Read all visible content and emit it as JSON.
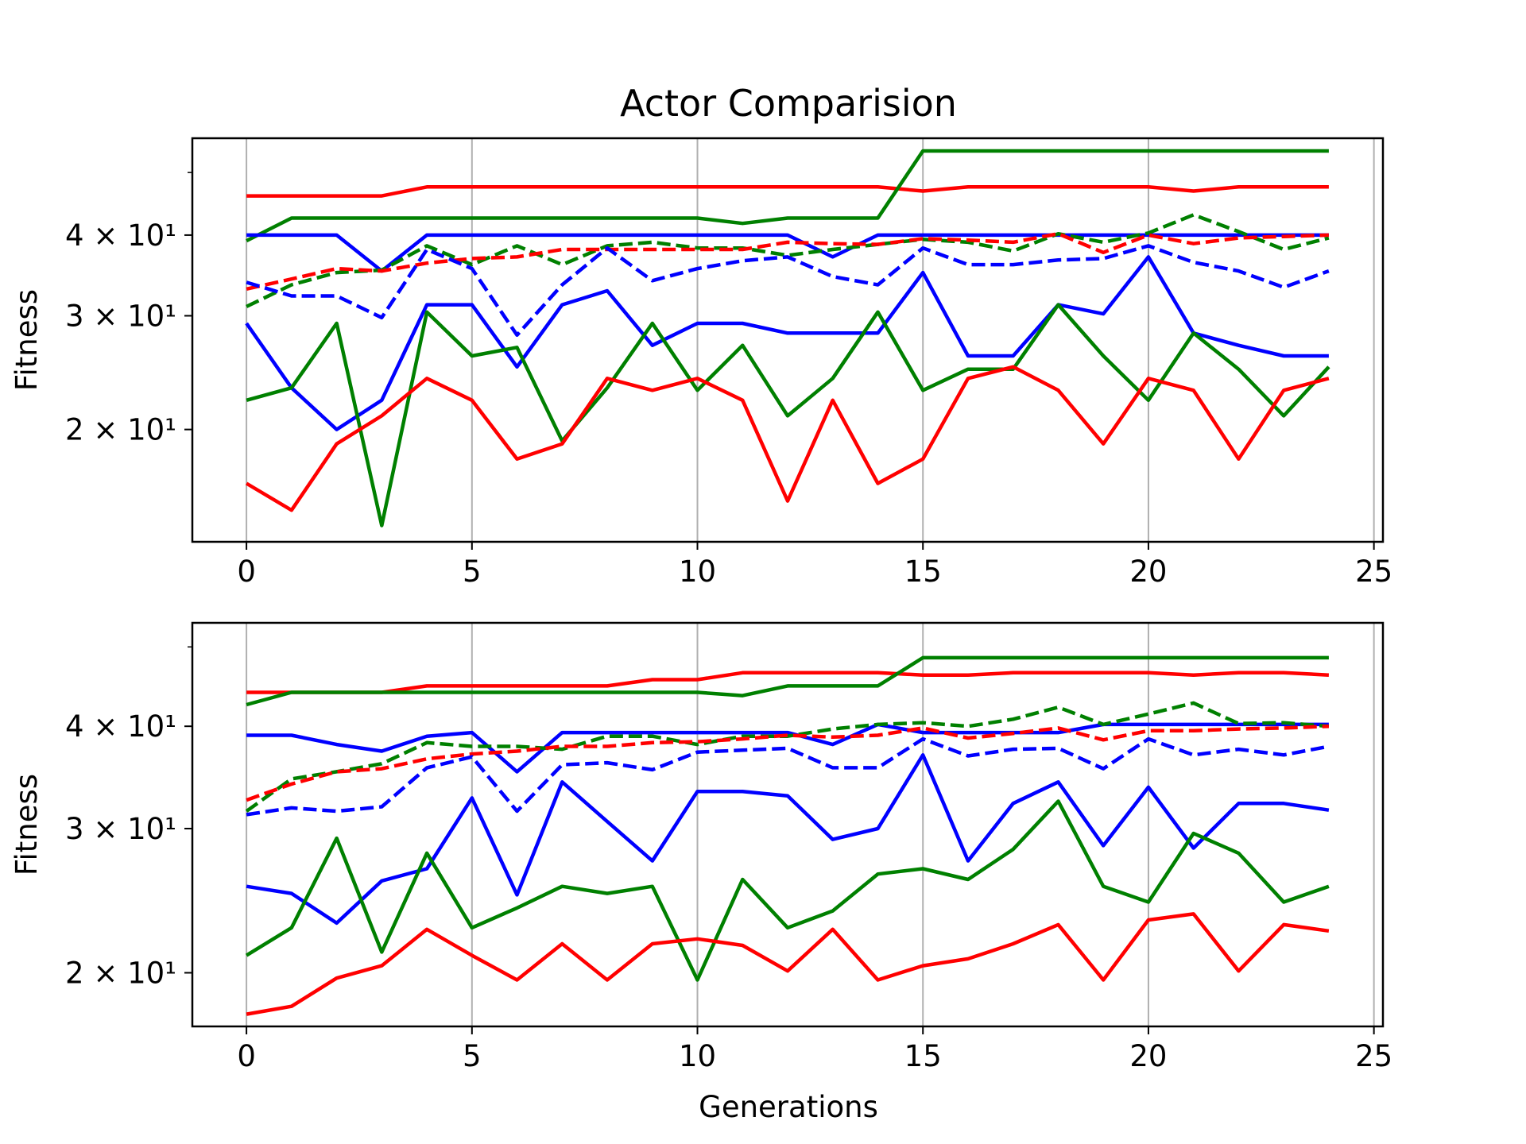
{
  "figure": {
    "title": "Actor Comparision",
    "xlabel": "Generations"
  },
  "chart_data": [
    {
      "type": "line",
      "title": "Actor Comparision",
      "xlabel": "",
      "ylabel": "Fitness",
      "yscale": "log",
      "xlim": [
        -1.2,
        25.2
      ],
      "ylim": [
        13.4,
        56.5
      ],
      "xticks": [
        0,
        5,
        10,
        15,
        20,
        25
      ],
      "yticks": [
        {
          "value": 20,
          "label": "2 × 10¹"
        },
        {
          "value": 30,
          "label": "3 × 10¹"
        },
        {
          "value": 40,
          "label": "4 × 10¹"
        }
      ],
      "grid": "x",
      "x": [
        0,
        1,
        2,
        3,
        4,
        5,
        6,
        7,
        8,
        9,
        10,
        11,
        12,
        13,
        14,
        15,
        16,
        17,
        18,
        19,
        20,
        21,
        22,
        23,
        24
      ],
      "series": [
        {
          "color": "#ff0000",
          "dash": "solid",
          "values": [
            46,
            46,
            46,
            46,
            47.5,
            47.5,
            47.5,
            47.5,
            47.5,
            47.5,
            47.5,
            47.5,
            47.5,
            47.5,
            47.5,
            46.8,
            47.5,
            47.5,
            47.5,
            47.5,
            47.5,
            46.8,
            47.5,
            47.5,
            47.5
          ]
        },
        {
          "color": "#008000",
          "dash": "solid",
          "values": [
            39.2,
            42.5,
            42.5,
            42.5,
            42.5,
            42.5,
            42.5,
            42.5,
            42.5,
            42.5,
            42.5,
            41.7,
            42.5,
            42.5,
            42.5,
            54,
            54,
            54,
            54,
            54,
            54,
            54,
            54,
            54,
            54
          ]
        },
        {
          "color": "#0000ff",
          "dash": "solid",
          "values": [
            40,
            40,
            40,
            35.2,
            40,
            40,
            40,
            40,
            40,
            40,
            40,
            40,
            40,
            37,
            40,
            40,
            40,
            40,
            40,
            40,
            40,
            40,
            40,
            40,
            40
          ]
        },
        {
          "color": "#008000",
          "dash": "dashed",
          "values": [
            31,
            33.5,
            35,
            35.3,
            38.5,
            36,
            38.5,
            36,
            38.5,
            39,
            38.2,
            38.2,
            37.2,
            38,
            38.7,
            39.4,
            39,
            37.8,
            40.2,
            39,
            40.3,
            43,
            40.5,
            38,
            39.6
          ]
        },
        {
          "color": "#ff0000",
          "dash": "dashed",
          "values": [
            33,
            34.2,
            35.5,
            35.2,
            36.2,
            36.8,
            37,
            38,
            38,
            38,
            38,
            38,
            39,
            38.8,
            38.7,
            39.5,
            39.3,
            39,
            40.2,
            37.6,
            40,
            38.8,
            39.6,
            39.8,
            40
          ]
        },
        {
          "color": "#0000ff",
          "dash": "dashed",
          "values": [
            33.8,
            32.2,
            32.2,
            29.8,
            38,
            35.5,
            28,
            33.5,
            38.2,
            34,
            35.5,
            36.5,
            37,
            34.5,
            33.5,
            38.2,
            36,
            36,
            36.6,
            36.8,
            38.5,
            36.3,
            35.2,
            33.2,
            35.2
          ]
        },
        {
          "color": "#0000ff",
          "dash": "solid",
          "values": [
            29.2,
            23.2,
            20,
            22.2,
            31.2,
            31.2,
            25,
            31.2,
            32.8,
            27,
            29.2,
            29.2,
            28.2,
            28.2,
            28.2,
            35,
            26,
            26,
            31.2,
            30.2,
            37,
            28.2,
            27,
            26,
            26
          ]
        },
        {
          "color": "#008000",
          "dash": "solid",
          "values": [
            22.2,
            23.2,
            29.2,
            14.2,
            30.4,
            26,
            26.8,
            19.2,
            23.2,
            29.2,
            23,
            27,
            21,
            24,
            30.4,
            23,
            24.8,
            24.8,
            31.2,
            26,
            22.2,
            28.2,
            24.8,
            21,
            25
          ]
        },
        {
          "color": "#ff0000",
          "dash": "solid",
          "values": [
            16.5,
            15,
            19,
            21,
            24,
            22.2,
            18,
            19,
            24,
            23,
            24,
            22.2,
            15.5,
            22.2,
            16.5,
            18,
            24,
            25,
            23,
            19,
            24,
            23,
            18,
            23,
            24
          ]
        }
      ]
    },
    {
      "type": "line",
      "title": "",
      "xlabel": "Generations",
      "ylabel": "Fitness",
      "yscale": "log",
      "xlim": [
        -1.2,
        25.2
      ],
      "ylim": [
        17.2,
        53.5
      ],
      "xticks": [
        0,
        5,
        10,
        15,
        20,
        25
      ],
      "yticks": [
        {
          "value": 20,
          "label": "2 × 10¹"
        },
        {
          "value": 30,
          "label": "3 × 10¹"
        },
        {
          "value": 40,
          "label": "4 × 10¹"
        }
      ],
      "grid": "x",
      "x": [
        0,
        1,
        2,
        3,
        4,
        5,
        6,
        7,
        8,
        9,
        10,
        11,
        12,
        13,
        14,
        15,
        16,
        17,
        18,
        19,
        20,
        21,
        22,
        23,
        24
      ],
      "series": [
        {
          "color": "#ff0000",
          "dash": "solid",
          "values": [
            44,
            44,
            44,
            44,
            44.8,
            44.8,
            44.8,
            44.8,
            44.8,
            45.6,
            45.6,
            46.5,
            46.5,
            46.5,
            46.5,
            46.2,
            46.2,
            46.5,
            46.5,
            46.5,
            46.5,
            46.2,
            46.5,
            46.5,
            46.2
          ]
        },
        {
          "color": "#008000",
          "dash": "solid",
          "values": [
            42.5,
            44,
            44,
            44,
            44,
            44,
            44,
            44,
            44,
            44,
            44,
            43.6,
            44.8,
            44.8,
            44.8,
            48.5,
            48.5,
            48.5,
            48.5,
            48.5,
            48.5,
            48.5,
            48.5,
            48.5,
            48.5
          ]
        },
        {
          "color": "#0000ff",
          "dash": "solid",
          "values": [
            39,
            39,
            38,
            37.3,
            38.9,
            39.3,
            35.2,
            39.3,
            39.3,
            39.3,
            39.3,
            39.3,
            39.3,
            38,
            40.2,
            39.3,
            39.3,
            39.3,
            39.3,
            40.2,
            40.2,
            40.2,
            40.2,
            40.2,
            40.2
          ]
        },
        {
          "color": "#008000",
          "dash": "dashed",
          "values": [
            31.5,
            34.5,
            35.2,
            36,
            38.2,
            37.8,
            37.8,
            37.5,
            38.9,
            38.9,
            38,
            38.9,
            38.9,
            39.7,
            40.2,
            40.4,
            40,
            40.8,
            42.2,
            40.2,
            41.4,
            42.7,
            40.3,
            40.4,
            40
          ]
        },
        {
          "color": "#ff0000",
          "dash": "dashed",
          "values": [
            32.5,
            34,
            35.2,
            35.5,
            36.5,
            37,
            37.3,
            37.8,
            37.8,
            38.2,
            38.3,
            38.6,
            39,
            38.8,
            39,
            39.8,
            38.7,
            39.2,
            39.8,
            38.5,
            39.5,
            39.5,
            39.7,
            39.8,
            40
          ]
        },
        {
          "color": "#0000ff",
          "dash": "dashed",
          "values": [
            31.2,
            31.8,
            31.5,
            31.9,
            35.6,
            36.7,
            31.5,
            35.9,
            36.1,
            35.4,
            37.2,
            37.4,
            37.6,
            35.6,
            35.6,
            38.6,
            36.8,
            37.5,
            37.6,
            35.5,
            38.6,
            36.9,
            37.5,
            36.9,
            37.8
          ]
        },
        {
          "color": "#0000ff",
          "dash": "solid",
          "values": [
            25.5,
            25,
            23,
            25.9,
            26.8,
            32.7,
            24.9,
            34.2,
            30.6,
            27.4,
            33.3,
            33.3,
            32.9,
            29.1,
            30,
            36.9,
            27.4,
            32.2,
            34.2,
            28.6,
            33.7,
            28.4,
            32.2,
            32.2,
            31.6
          ]
        },
        {
          "color": "#008000",
          "dash": "solid",
          "values": [
            21,
            22.7,
            29.2,
            21.2,
            28,
            22.7,
            24,
            25.5,
            25,
            25.5,
            19.6,
            26,
            22.7,
            23.8,
            26.4,
            26.8,
            26,
            28.3,
            32.4,
            25.5,
            24.4,
            29.6,
            28,
            24.4,
            25.5
          ]
        },
        {
          "color": "#ff0000",
          "dash": "solid",
          "values": [
            17.8,
            18.2,
            19.7,
            20.4,
            22.6,
            21,
            19.6,
            21.7,
            19.6,
            21.7,
            22,
            21.6,
            20.1,
            22.6,
            19.6,
            20.4,
            20.8,
            21.7,
            22.9,
            19.6,
            23.2,
            23.6,
            20.1,
            22.9,
            22.5
          ]
        }
      ]
    }
  ]
}
